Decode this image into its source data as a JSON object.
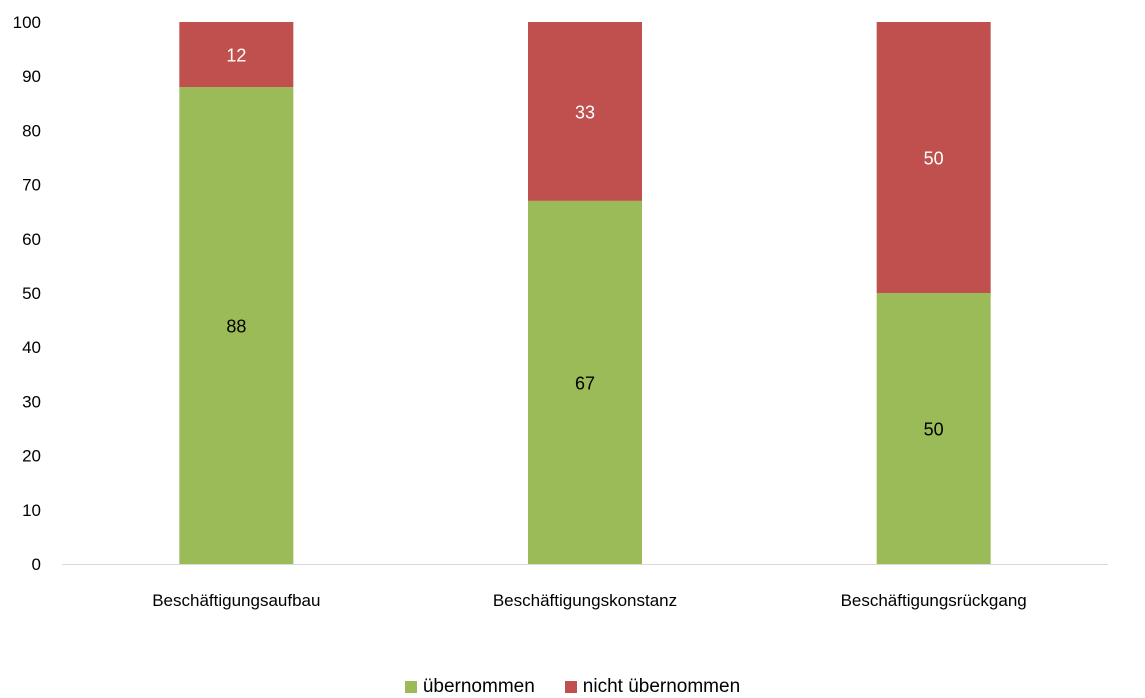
{
  "chart_data": {
    "type": "bar",
    "stacked": true,
    "categories": [
      "Beschäftigungsaufbau",
      "Beschäftigungskonstanz",
      "Beschäftigungsrückgang"
    ],
    "series": [
      {
        "name": "übernommen",
        "values": [
          88,
          67,
          50
        ],
        "color": "#9BBB59"
      },
      {
        "name": "nicht übernommen",
        "values": [
          12,
          33,
          50
        ],
        "color": "#C0504D"
      }
    ],
    "ylim": [
      0,
      100
    ],
    "yticks": [
      0,
      10,
      20,
      30,
      40,
      50,
      60,
      70,
      80,
      90,
      100
    ],
    "grid": false,
    "legend": "bottom"
  }
}
